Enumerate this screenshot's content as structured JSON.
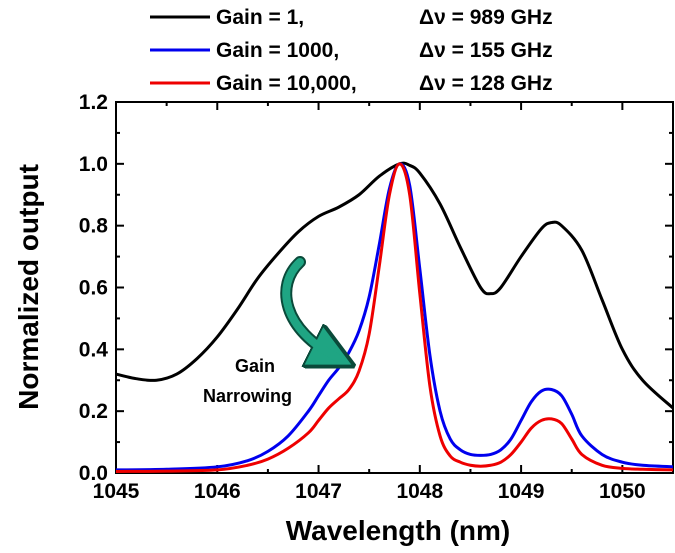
{
  "chart_data": {
    "type": "line",
    "xlabel": "Wavelength (nm)",
    "ylabel": "Normalized output",
    "xlim": [
      1045,
      1050.5
    ],
    "ylim": [
      0,
      1.2
    ],
    "x_ticks": [
      1045,
      1046,
      1047,
      1048,
      1049,
      1050
    ],
    "y_ticks": [
      0.0,
      0.2,
      0.4,
      0.6,
      0.8,
      1.0,
      1.2
    ],
    "x_tick_labels": [
      "1045",
      "1046",
      "1047",
      "1048",
      "1049",
      "1050"
    ],
    "y_tick_labels": [
      "0.0",
      "0.2",
      "0.4",
      "0.6",
      "0.8",
      "1.0",
      "1.2"
    ],
    "grid": false,
    "legend_position": "top",
    "annotation": {
      "line1": "Gain",
      "line2": "Narrowing",
      "arrow_color": "#1fa583"
    },
    "series": [
      {
        "name": "Gain = 1,",
        "delta": "Δν = 989 GHz",
        "color": "#000000",
        "x": [
          1045.0,
          1045.2,
          1045.4,
          1045.6,
          1045.8,
          1046.0,
          1046.2,
          1046.4,
          1046.6,
          1046.8,
          1047.0,
          1047.2,
          1047.4,
          1047.6,
          1047.8,
          1047.9,
          1048.0,
          1048.2,
          1048.4,
          1048.6,
          1048.7,
          1048.8,
          1049.0,
          1049.2,
          1049.3,
          1049.4,
          1049.6,
          1049.8,
          1050.0,
          1050.2,
          1050.5
        ],
        "y": [
          0.32,
          0.305,
          0.3,
          0.32,
          0.37,
          0.44,
          0.53,
          0.63,
          0.71,
          0.78,
          0.83,
          0.86,
          0.9,
          0.96,
          1.0,
          0.995,
          0.97,
          0.87,
          0.73,
          0.6,
          0.58,
          0.6,
          0.7,
          0.79,
          0.81,
          0.8,
          0.72,
          0.56,
          0.4,
          0.3,
          0.21
        ]
      },
      {
        "name": "Gain = 1000,",
        "delta": "Δν = 155 GHz",
        "color": "#0000ee",
        "x": [
          1045.0,
          1045.5,
          1046.0,
          1046.3,
          1046.5,
          1046.7,
          1046.9,
          1047.0,
          1047.1,
          1047.2,
          1047.3,
          1047.4,
          1047.5,
          1047.6,
          1047.7,
          1047.8,
          1047.9,
          1048.0,
          1048.1,
          1048.2,
          1048.3,
          1048.4,
          1048.5,
          1048.6,
          1048.7,
          1048.8,
          1048.9,
          1049.0,
          1049.1,
          1049.2,
          1049.3,
          1049.4,
          1049.5,
          1049.6,
          1049.8,
          1050.0,
          1050.2,
          1050.5
        ],
        "y": [
          0.01,
          0.012,
          0.02,
          0.04,
          0.07,
          0.12,
          0.2,
          0.25,
          0.3,
          0.34,
          0.39,
          0.46,
          0.57,
          0.74,
          0.92,
          1.0,
          0.93,
          0.66,
          0.38,
          0.2,
          0.11,
          0.075,
          0.06,
          0.057,
          0.06,
          0.075,
          0.11,
          0.17,
          0.23,
          0.265,
          0.27,
          0.25,
          0.19,
          0.12,
          0.06,
          0.035,
          0.025,
          0.02
        ]
      },
      {
        "name": "Gain = 10,000,",
        "delta": "Δν = 128 GHz",
        "color": "#ee0000",
        "x": [
          1045.0,
          1045.5,
          1046.0,
          1046.3,
          1046.5,
          1046.7,
          1046.9,
          1047.0,
          1047.1,
          1047.2,
          1047.3,
          1047.4,
          1047.5,
          1047.6,
          1047.7,
          1047.8,
          1047.9,
          1048.0,
          1048.1,
          1048.2,
          1048.3,
          1048.4,
          1048.5,
          1048.6,
          1048.7,
          1048.8,
          1048.9,
          1049.0,
          1049.1,
          1049.2,
          1049.3,
          1049.4,
          1049.5,
          1049.6,
          1049.8,
          1050.0,
          1050.2,
          1050.5
        ],
        "y": [
          0.005,
          0.006,
          0.01,
          0.025,
          0.045,
          0.08,
          0.13,
          0.17,
          0.21,
          0.24,
          0.27,
          0.33,
          0.45,
          0.67,
          0.9,
          1.0,
          0.9,
          0.58,
          0.28,
          0.12,
          0.055,
          0.035,
          0.025,
          0.022,
          0.025,
          0.035,
          0.06,
          0.1,
          0.145,
          0.17,
          0.175,
          0.16,
          0.11,
          0.06,
          0.025,
          0.015,
          0.012,
          0.01
        ]
      }
    ]
  }
}
